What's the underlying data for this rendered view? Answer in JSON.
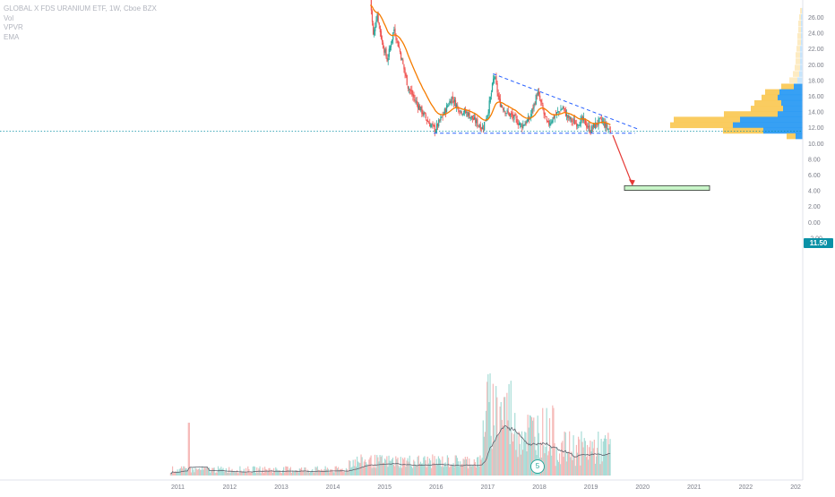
{
  "header": {
    "symbol_line": "GLOBAL X FDS URANIUM ETF, 1W, Cboe BZX",
    "indicators": [
      "Vol",
      "VPVR",
      "EMA"
    ]
  },
  "price_axis": {
    "ticks": [
      "26.00",
      "24.00",
      "22.00",
      "20.00",
      "18.00",
      "16.00",
      "14.00",
      "12.00",
      "10.00",
      "8.00",
      "6.00",
      "4.00",
      "2.00",
      "0.00",
      "-2.00"
    ],
    "current_price": "11.50"
  },
  "time_axis": {
    "ticks": [
      "2011",
      "2012",
      "2013",
      "2014",
      "2015",
      "2016",
      "2017",
      "2018",
      "2019",
      "2020",
      "2021",
      "2022",
      "202"
    ]
  },
  "event_marker": "5",
  "colors": {
    "up": "#26a69a",
    "down": "#ef5350",
    "ema": "#f57c00",
    "trendline": "#2962ff",
    "price_line": "#0a91a6",
    "target_box_fill": "#c8f5c8",
    "arrow": "#e53935",
    "vpvr_up": "#2196f3",
    "vpvr_down": "#f9c74f"
  },
  "chart_data": {
    "type": "candlestick",
    "timeframe": "1W",
    "ylim": [
      -3,
      27
    ],
    "current_price": 11.5,
    "annotations": {
      "descending_trendline": "from ~18.8 (early 2017) down to ~12.0 (mid 2019)",
      "support_line": 11.3,
      "projection_target_box": [
        4.0,
        4.6
      ]
    }
  }
}
